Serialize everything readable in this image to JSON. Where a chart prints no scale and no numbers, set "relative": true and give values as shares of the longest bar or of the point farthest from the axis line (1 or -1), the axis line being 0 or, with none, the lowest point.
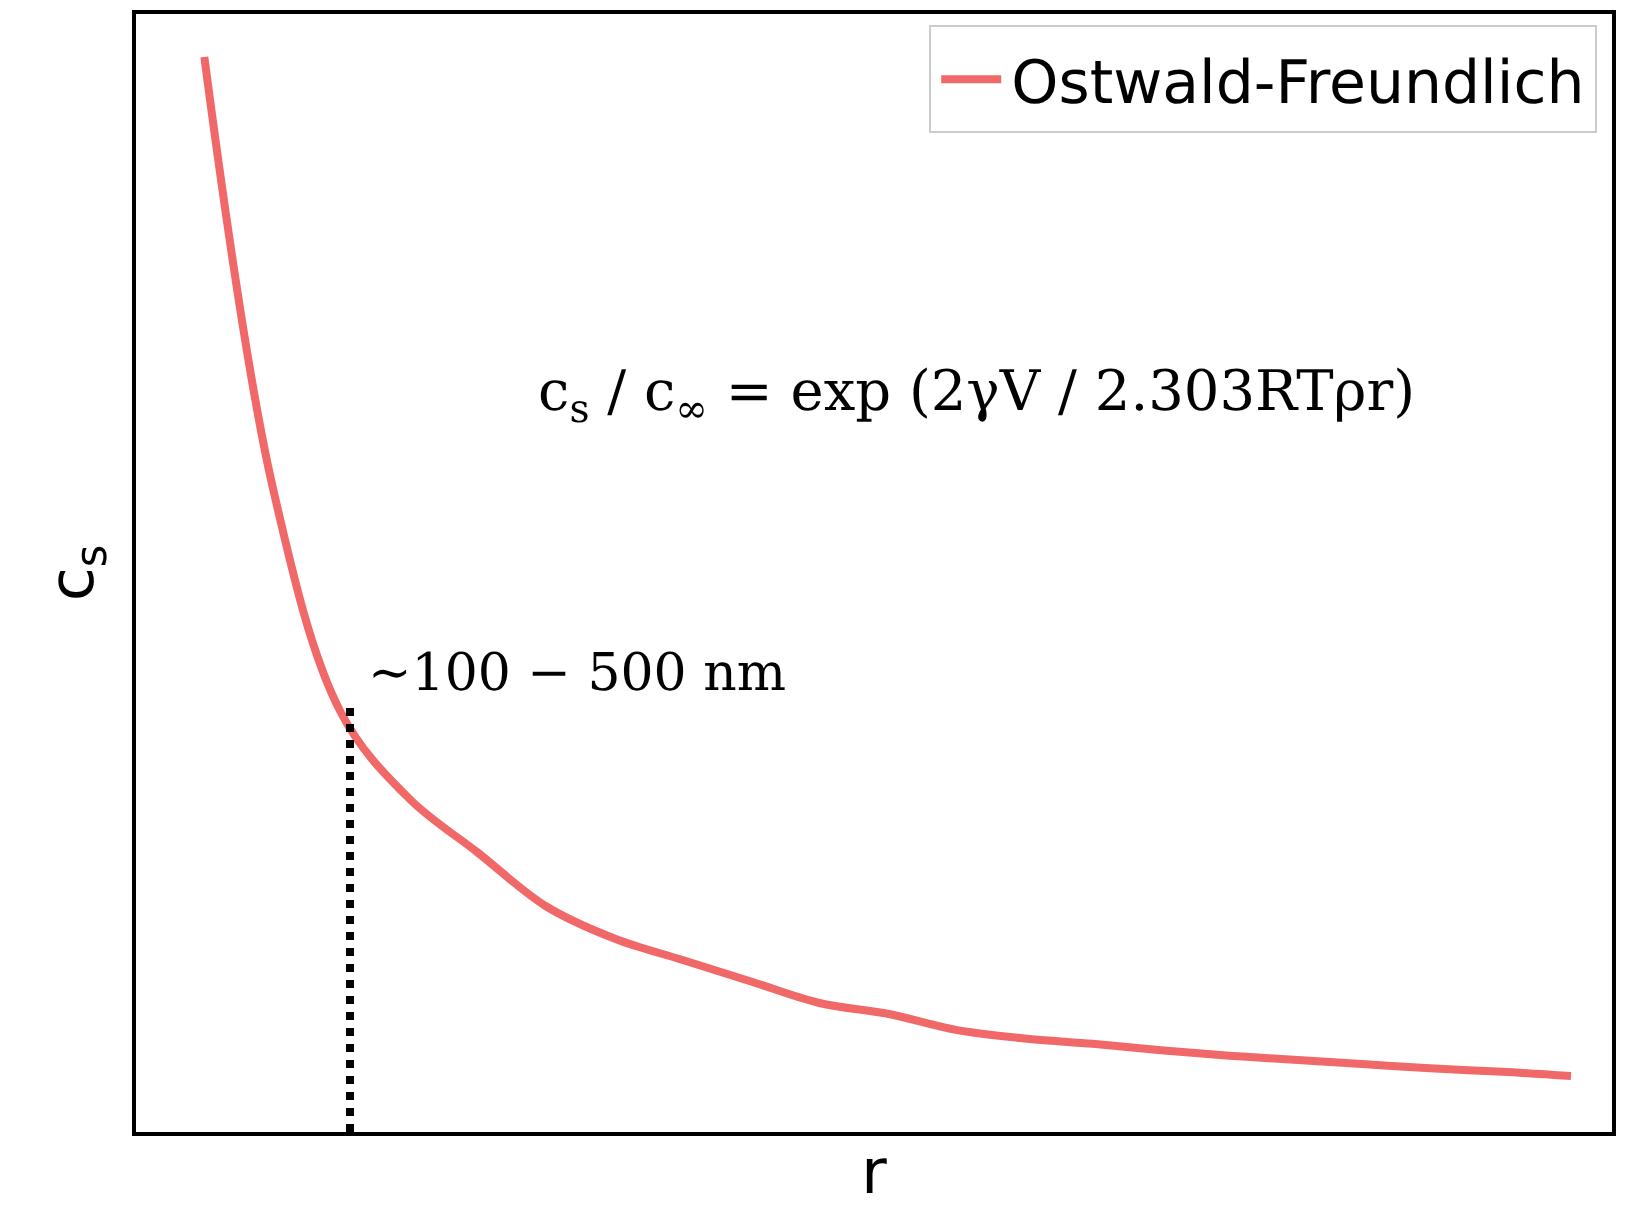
{
  "chart_data": {
    "type": "line",
    "relative": true,
    "xlabel": "r",
    "ylabel": "c$_{s}$",
    "categories": [
      null,
      null,
      null,
      null,
      null,
      null,
      null,
      null,
      null,
      null,
      null,
      null,
      null,
      null,
      null,
      null,
      null,
      null,
      null,
      null,
      null
    ],
    "series": [
      {
        "name": "Ostwald-Freundlich",
        "color": "#f06868",
        "values": [
          1,
          0.6,
          0.39,
          0.31,
          0.26,
          0.21,
          0.18,
          0.16,
          0.14,
          0.12,
          0.11,
          0.095,
          0.087,
          0.082,
          0.076,
          0.071,
          0.067,
          0.063,
          0.059,
          0.056,
          0.052
        ]
      }
    ],
    "annotations": [
      "c$_{s}$ / c$_{∞}$ = exp (2γV / 2.303RTρr)",
      "~100 − 500 nm"
    ],
    "legend": "top right",
    "line_style": "solid"
  }
}
